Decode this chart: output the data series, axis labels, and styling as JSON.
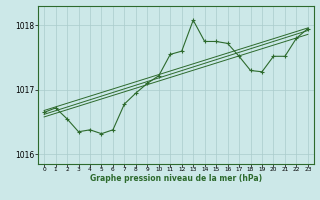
{
  "xlabel": "Graphe pression niveau de la mer (hPa)",
  "bg_color": "#cce8e8",
  "grid_color": "#aacccc",
  "line_color": "#2d6a2d",
  "x_values": [
    0,
    1,
    2,
    3,
    4,
    5,
    6,
    7,
    8,
    9,
    10,
    11,
    12,
    13,
    14,
    15,
    16,
    17,
    18,
    19,
    20,
    21,
    22,
    23
  ],
  "y_values": [
    1016.65,
    1016.72,
    1016.55,
    1016.35,
    1016.38,
    1016.32,
    1016.38,
    1016.78,
    1016.95,
    1017.1,
    1017.22,
    1017.55,
    1017.6,
    1018.08,
    1017.75,
    1017.75,
    1017.72,
    1017.52,
    1017.3,
    1017.28,
    1017.52,
    1017.52,
    1017.8,
    1017.95
  ],
  "ylim": [
    1015.85,
    1018.3
  ],
  "yticks": [
    1016,
    1017,
    1018
  ],
  "xticks": [
    0,
    1,
    2,
    3,
    4,
    5,
    6,
    7,
    8,
    9,
    10,
    11,
    12,
    13,
    14,
    15,
    16,
    17,
    18,
    19,
    20,
    21,
    22,
    23
  ],
  "trend_lines": [
    [
      0,
      1016.62,
      23,
      1017.92
    ],
    [
      0,
      1016.68,
      23,
      1017.96
    ],
    [
      0,
      1016.58,
      23,
      1017.86
    ]
  ]
}
